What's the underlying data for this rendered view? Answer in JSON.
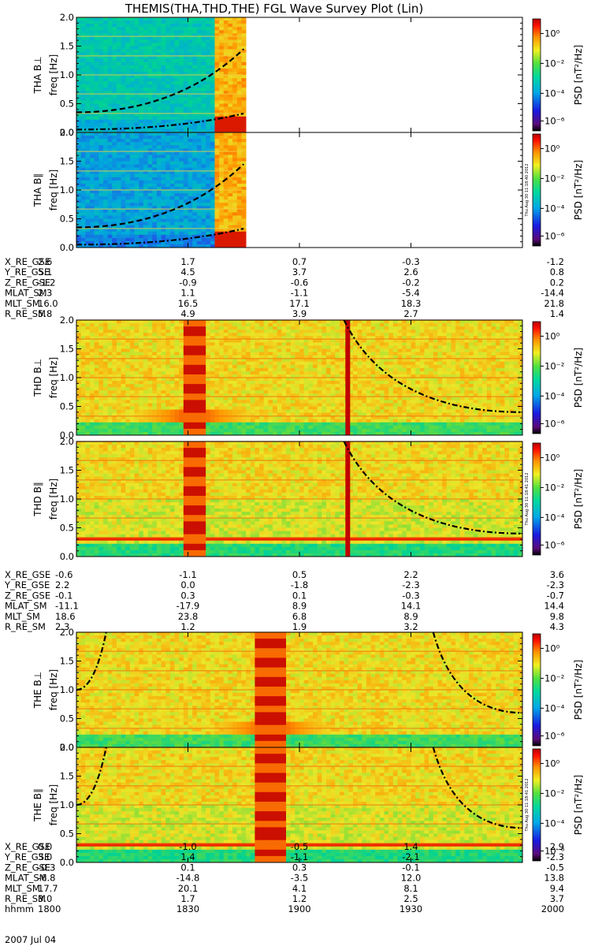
{
  "title": "THEMIS(THA,THD,THE) FGL Wave Survey Plot (Lin)",
  "colorbar": {
    "label": "PSD [nT²/Hz]",
    "ticks": [
      "10⁰",
      "10⁻²",
      "10⁻⁴",
      "10⁻⁶"
    ]
  },
  "stamps": [
    "Thu Aug 30 11:18:40 2012",
    "Thu Aug 30 11:18:41 2012",
    "Thu Aug 30 11:18:41 2012"
  ],
  "groups": [
    {
      "panels": [
        {
          "probe": "THA",
          "component": "B⊥",
          "ylabel": "freq [Hz]"
        },
        {
          "probe": "THA",
          "component": "B∥",
          "ylabel": "freq [Hz]"
        }
      ],
      "ephem": [
        {
          "name": "X_RE_GSE",
          "values": [
            "2.6",
            "1.7",
            "0.7",
            "-0.3",
            "-1.2"
          ]
        },
        {
          "name": "Y_RE_GSE",
          "values": [
            "5.1",
            "4.5",
            "3.7",
            "2.6",
            "0.8"
          ]
        },
        {
          "name": "Z_RE_GSE",
          "values": [
            "-1.2",
            "-0.9",
            "-0.6",
            "-0.2",
            "0.2"
          ]
        },
        {
          "name": "MLAT_SM",
          "values": [
            "2.3",
            "1.1",
            "-1.1",
            "-5.4",
            "-14.4"
          ]
        },
        {
          "name": "MLT_SM",
          "values": [
            "16.0",
            "16.5",
            "17.1",
            "18.3",
            "21.8"
          ]
        },
        {
          "name": "R_RE_SM",
          "values": [
            "5.8",
            "4.9",
            "3.9",
            "2.7",
            "1.4"
          ]
        }
      ]
    },
    {
      "panels": [
        {
          "probe": "THD",
          "component": "B⊥",
          "ylabel": "freq [Hz]"
        },
        {
          "probe": "THD",
          "component": "B∥",
          "ylabel": "freq [Hz]"
        }
      ],
      "ephem": [
        {
          "name": "X_RE_GSE",
          "values": [
            "-0.6",
            "-1.1",
            "0.5",
            "2.2",
            "3.6"
          ]
        },
        {
          "name": "Y_RE_GSE",
          "values": [
            "2.2",
            "0.0",
            "-1.8",
            "-2.3",
            "-2.3"
          ]
        },
        {
          "name": "Z_RE_GSE",
          "values": [
            "-0.1",
            "0.3",
            "0.1",
            "-0.3",
            "-0.7"
          ]
        },
        {
          "name": "MLAT_SM",
          "values": [
            "-11.1",
            "-17.9",
            "8.9",
            "14.1",
            "14.4"
          ]
        },
        {
          "name": "MLT_SM",
          "values": [
            "18.6",
            "23.8",
            "6.8",
            "8.9",
            "9.8"
          ]
        },
        {
          "name": "R_RE_SM",
          "values": [
            "2.3",
            "1.2",
            "1.9",
            "3.2",
            "4.3"
          ]
        }
      ]
    },
    {
      "panels": [
        {
          "probe": "THE",
          "component": "B⊥",
          "ylabel": "freq [Hz]"
        },
        {
          "probe": "THE",
          "component": "B∥",
          "ylabel": "freq [Hz]"
        }
      ],
      "ephem": [
        {
          "name": "X_RE_GSE",
          "values": [
            "0.0",
            "-1.0",
            "-0.5",
            "1.4",
            "2.9"
          ]
        },
        {
          "name": "Y_RE_GSE",
          "values": [
            "3.0",
            "1.4",
            "-1.1",
            "-2.1",
            "-2.3"
          ]
        },
        {
          "name": "Z_RE_GSE",
          "values": [
            "-0.3",
            "0.1",
            "0.3",
            "-0.1",
            "-0.5"
          ]
        },
        {
          "name": "MLAT_SM",
          "values": [
            "-6.8",
            "-14.8",
            "-3.5",
            "12.0",
            "13.8"
          ]
        },
        {
          "name": "MLT_SM",
          "values": [
            "17.7",
            "20.1",
            "4.1",
            "8.1",
            "9.4"
          ]
        },
        {
          "name": "R_RE_SM",
          "values": [
            "3.0",
            "1.7",
            "1.2",
            "2.5",
            "3.7"
          ]
        },
        {
          "name": "hhmm",
          "values": [
            "1800",
            "1830",
            "1900",
            "1930",
            "2000"
          ]
        }
      ]
    }
  ],
  "date_label": "2007 Jul 04",
  "colors": {
    "bg_low": "#2aa8c8",
    "bg_mid": "#e8d84a",
    "saturated": "#b80000",
    "line": "#000000"
  },
  "chart_data": {
    "type": "heatmap",
    "title": "THEMIS(THA,THD,THE) FGL Wave Survey Plot (Lin)",
    "xlabel": "hhmm",
    "x_ticks": [
      "1800",
      "1830",
      "1900",
      "1930",
      "2000"
    ],
    "y_ticks": [
      "0.0",
      "0.5",
      "1.0",
      "1.5",
      "2.0"
    ],
    "ylim": [
      0,
      2.0
    ],
    "color_scale": "log",
    "clim": [
      1e-07,
      10
    ],
    "panels": [
      {
        "name": "THA B⊥",
        "data_end_hhmm": "1845",
        "burst_start": "1838",
        "burst_end": "1845",
        "curves": [
          {
            "style": "dashed",
            "x": [
              "1800",
              "1845"
            ],
            "y": [
              0.35,
              1.45
            ]
          },
          {
            "style": "dash-dot",
            "x": [
              "1800",
              "1845"
            ],
            "y": [
              0.05,
              0.33
            ]
          }
        ]
      },
      {
        "name": "THA B∥",
        "data_end_hhmm": "1845",
        "burst_start": "1838",
        "burst_end": "1845",
        "curves": [
          {
            "style": "dashed",
            "x": [
              "1800",
              "1845"
            ],
            "y": [
              0.35,
              1.45
            ]
          },
          {
            "style": "dash-dot",
            "x": [
              "1800",
              "1845"
            ],
            "y": [
              0.05,
              0.33
            ]
          }
        ]
      },
      {
        "name": "THD B⊥",
        "burst_start": "1829",
        "burst_end": "1834",
        "curves": [
          {
            "style": "dash-dot",
            "x": [
              "1912",
              "2000"
            ],
            "y": [
              2.0,
              0.4
            ]
          }
        ]
      },
      {
        "name": "THD B∥",
        "burst_start": "1829",
        "burst_end": "1834",
        "curves": [
          {
            "style": "dash-dot",
            "x": [
              "1912",
              "2000"
            ],
            "y": [
              2.0,
              0.4
            ]
          }
        ]
      },
      {
        "name": "THE B⊥",
        "burst_start": "1849",
        "burst_end": "1856",
        "curves": [
          {
            "style": "dash-dot",
            "x": [
              "1800",
              "1808"
            ],
            "y": [
              1.0,
              2.0
            ]
          },
          {
            "style": "dash-dot",
            "x": [
              "1936",
              "2000"
            ],
            "y": [
              2.0,
              0.6
            ]
          }
        ]
      },
      {
        "name": "THE B∥",
        "burst_start": "1849",
        "burst_end": "1856",
        "curves": [
          {
            "style": "dash-dot",
            "x": [
              "1800",
              "1808"
            ],
            "y": [
              1.0,
              2.0
            ]
          },
          {
            "style": "dash-dot",
            "x": [
              "1936",
              "2000"
            ],
            "y": [
              2.0,
              0.6
            ]
          }
        ]
      }
    ]
  }
}
